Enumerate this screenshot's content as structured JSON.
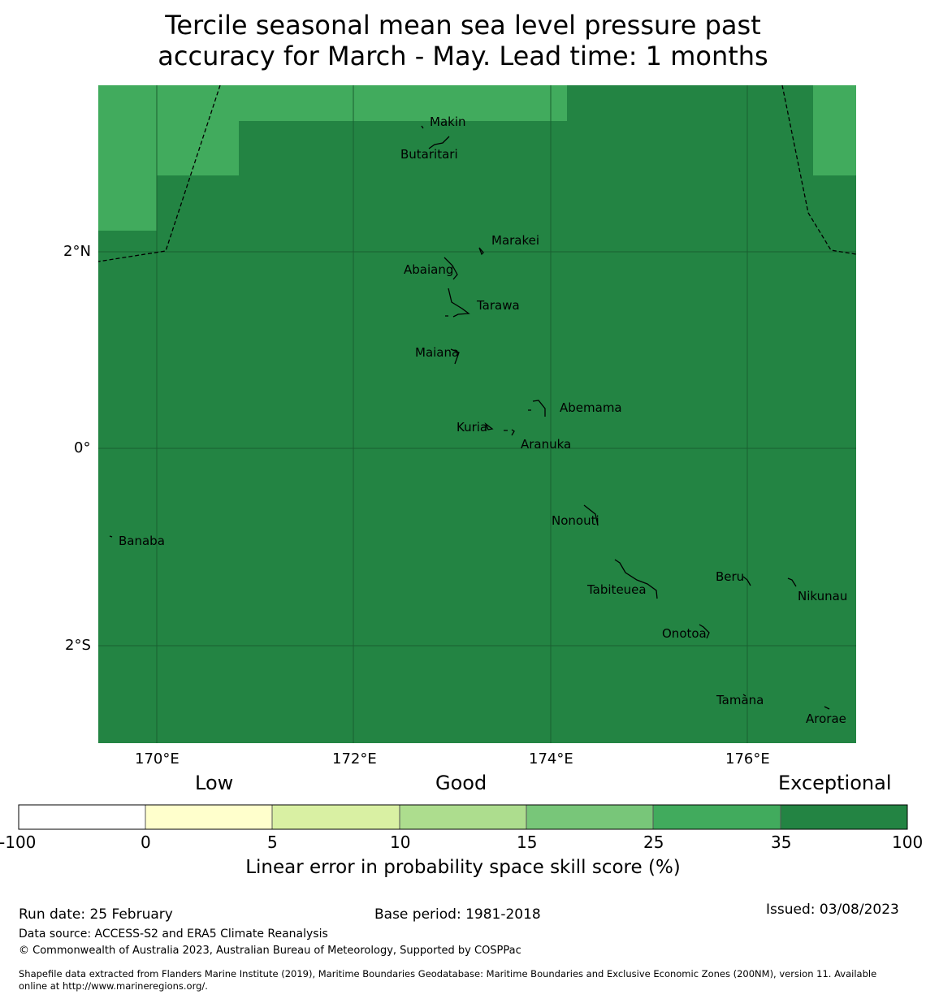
{
  "title": {
    "line1": "Tercile seasonal mean sea level pressure past",
    "line2": "accuracy for March - May. Lead time: 1 months"
  },
  "map": {
    "longitude_labels": [
      "170°E",
      "172°E",
      "174°E",
      "176°E"
    ],
    "latitude_labels": [
      "2°N",
      "0°",
      "2°S"
    ],
    "skill_category": "35 - 100",
    "places": [
      {
        "name": "Makin"
      },
      {
        "name": "Butaritari"
      },
      {
        "name": "Marakei"
      },
      {
        "name": "Abaiang"
      },
      {
        "name": "Tarawa"
      },
      {
        "name": "Maiana"
      },
      {
        "name": "Abemama"
      },
      {
        "name": "Kuria"
      },
      {
        "name": "Aranuka"
      },
      {
        "name": "Banaba"
      },
      {
        "name": "Nonouti"
      },
      {
        "name": "Beru"
      },
      {
        "name": "Tabiteuea"
      },
      {
        "name": "Nikunau"
      },
      {
        "name": "Onotoa"
      },
      {
        "name": "Tamana"
      },
      {
        "name": "Arorae"
      }
    ]
  },
  "legend": {
    "categories": [
      "Low",
      "Good",
      "Exceptional"
    ],
    "boundaries": [
      "-100",
      "0",
      "5",
      "10",
      "15",
      "25",
      "35",
      "100"
    ],
    "colors": [
      "#ffffff",
      "#ffffcc",
      "#d9f0a3",
      "#addd8e",
      "#78c679",
      "#41ab5d",
      "#238443"
    ],
    "label": "Linear error in probability space skill score (%)"
  },
  "colors": {
    "exceptional": "#238443",
    "high": "#41ab5d",
    "grid": "#1a5f30"
  },
  "footer": {
    "run_date": "Run date: 25 February",
    "base_period": "Base period: 1981-2018",
    "issued": "Issued: 03/08/2023",
    "data_source": "Data source: ACCESS-S2 and ERA5 Climate Reanalysis",
    "copyright": "© Commonwealth of Australia 2023, Australian Bureau of Meteorology, Supported by COSPPac",
    "shapefile_line1": "Shapefile data extracted from Flanders Marine Institute (2019), Maritime Boundaries Geodatabase: Maritime Boundaries and Exclusive Economic Zones (200NM), version 11. Available",
    "shapefile_line2": "online at http://www.marineregions.org/."
  }
}
